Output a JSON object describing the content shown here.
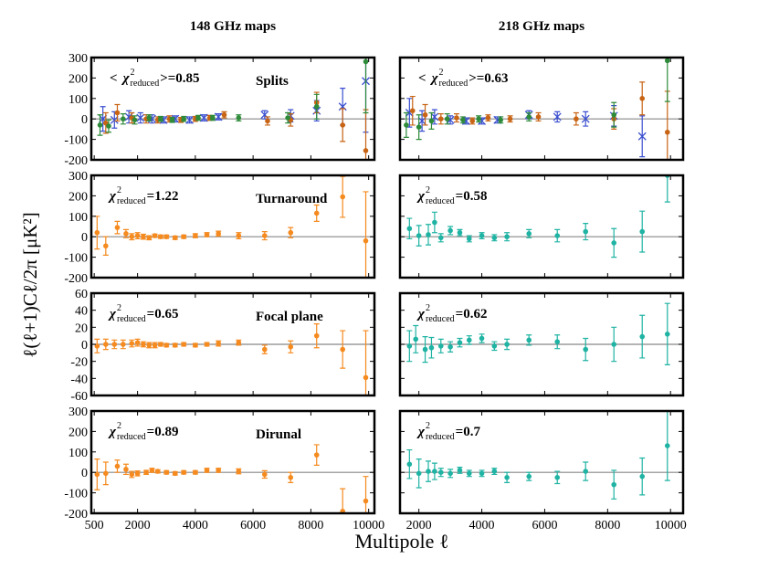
{
  "figure": {
    "xlabel": "Multipole ℓ",
    "ylabel": "ℓ(ℓ+1)Cℓ/2π [μK²]"
  },
  "chart_data": [
    {
      "type": "scatter",
      "title": "148 GHz maps",
      "label": "Splits",
      "stat_prefix": "<",
      "stat_symbol": "χ",
      "stat_sup": "2",
      "stat_sub": "reduced",
      "stat_text": ">=0.85",
      "xlim": [
        400,
        10200
      ],
      "ylim": [
        -200,
        300
      ],
      "xticks": [
        500,
        2000,
        4000,
        6000,
        8000,
        10000
      ],
      "yticks": [
        -200,
        -100,
        0,
        100,
        200,
        300
      ],
      "show_xtick_labels": false,
      "show_ytick_labels": true,
      "hline": 0,
      "hline_color": "#888888",
      "series": [
        {
          "color": "#3a4fd0",
          "marker": "x",
          "x": [
            800,
            1200,
            1700,
            2100,
            2500,
            2900,
            3300,
            3800,
            4300,
            4800,
            6400,
            7300,
            8200,
            9100,
            9900
          ],
          "values": [
            0,
            -5,
            10,
            5,
            0,
            -5,
            0,
            -5,
            5,
            10,
            20,
            15,
            40,
            60,
            185
          ],
          "errors": [
            60,
            40,
            30,
            25,
            20,
            15,
            15,
            15,
            15,
            15,
            20,
            30,
            50,
            90,
            250
          ]
        },
        {
          "color": "#c86414",
          "marker": "o",
          "x": [
            900,
            1300,
            1800,
            2300,
            2700,
            3100,
            3500,
            4000,
            4500,
            5000,
            6500,
            7300,
            8200,
            9100,
            9900
          ],
          "values": [
            -20,
            30,
            5,
            0,
            -5,
            0,
            -5,
            0,
            5,
            20,
            -10,
            -5,
            80,
            -30,
            -155
          ],
          "errors": [
            50,
            40,
            25,
            20,
            15,
            15,
            12,
            12,
            12,
            15,
            20,
            30,
            50,
            80,
            200
          ]
        },
        {
          "color": "#2e8b3a",
          "marker": "o",
          "x": [
            700,
            1000,
            1500,
            1900,
            2400,
            2800,
            3200,
            3600,
            4100,
            4600,
            5500,
            7200,
            8200,
            9900
          ],
          "values": [
            -30,
            -35,
            0,
            -5,
            5,
            0,
            -5,
            0,
            5,
            5,
            5,
            5,
            60,
            280
          ],
          "errors": [
            50,
            30,
            25,
            20,
            15,
            12,
            12,
            12,
            12,
            12,
            15,
            25,
            60,
            250
          ]
        }
      ]
    },
    {
      "type": "scatter",
      "title": "218 GHz maps",
      "stat_prefix": "<",
      "stat_symbol": "χ",
      "stat_sup": "2",
      "stat_sub": "reduced",
      "stat_text": ">=0.63",
      "xlim": [
        1400,
        10400
      ],
      "ylim": [
        -200,
        300
      ],
      "xticks": [
        2000,
        4000,
        6000,
        8000,
        10000
      ],
      "yticks": [
        -200,
        -100,
        0,
        100,
        200,
        300
      ],
      "show_xtick_labels": false,
      "show_ytick_labels": false,
      "hline": 0,
      "hline_color": "#888888",
      "series": [
        {
          "color": "#3a4fd0",
          "marker": "x",
          "x": [
            1700,
            2100,
            2500,
            3000,
            3500,
            4000,
            4500,
            5500,
            6400,
            7300,
            8200,
            9100
          ],
          "values": [
            30,
            -10,
            10,
            -5,
            -10,
            -10,
            -5,
            20,
            10,
            0,
            15,
            -85
          ],
          "errors": [
            70,
            50,
            35,
            20,
            15,
            15,
            15,
            20,
            25,
            35,
            50,
            100
          ]
        },
        {
          "color": "#c86414",
          "marker": "o",
          "x": [
            1800,
            2200,
            2700,
            3200,
            3700,
            4200,
            4900,
            5800,
            7000,
            8200,
            9100,
            9900
          ],
          "values": [
            40,
            20,
            0,
            5,
            -10,
            5,
            0,
            10,
            0,
            0,
            100,
            -65
          ],
          "errors": [
            70,
            50,
            25,
            20,
            15,
            15,
            15,
            20,
            30,
            50,
            80,
            200
          ]
        },
        {
          "color": "#2e8b3a",
          "marker": "o",
          "x": [
            1600,
            2000,
            2400,
            2900,
            3400,
            3900,
            4600,
            5500,
            8200,
            9900
          ],
          "values": [
            -30,
            -40,
            -10,
            0,
            -5,
            0,
            -5,
            10,
            20,
            285
          ],
          "errors": [
            60,
            60,
            40,
            25,
            15,
            15,
            15,
            20,
            60,
            200
          ]
        }
      ]
    },
    {
      "type": "scatter",
      "label": "Turnaround",
      "stat_symbol": "χ",
      "stat_sup": "2",
      "stat_sub": "reduced",
      "stat_text": "=1.22",
      "xlim": [
        400,
        10200
      ],
      "ylim": [
        -200,
        300
      ],
      "xticks": [
        500,
        2000,
        4000,
        6000,
        8000,
        10000
      ],
      "yticks": [
        -200,
        -100,
        0,
        100,
        200,
        300
      ],
      "show_xtick_labels": false,
      "show_ytick_labels": true,
      "hline": 0,
      "hline_color": "#888888",
      "series": [
        {
          "color": "#f58a1f",
          "marker": "o",
          "x": [
            600,
            900,
            1300,
            1600,
            1800,
            2000,
            2200,
            2400,
            2600,
            2800,
            3000,
            3300,
            3600,
            4000,
            4400,
            4800,
            5500,
            6400,
            7300,
            8200,
            9100,
            9900
          ],
          "values": [
            20,
            -45,
            45,
            15,
            0,
            5,
            0,
            -5,
            5,
            0,
            0,
            -5,
            0,
            5,
            10,
            15,
            5,
            5,
            20,
            115,
            195,
            -20
          ],
          "errors": [
            80,
            45,
            30,
            20,
            15,
            15,
            12,
            10,
            8,
            8,
            8,
            8,
            8,
            10,
            10,
            12,
            15,
            20,
            25,
            40,
            100,
            240
          ]
        }
      ]
    },
    {
      "type": "scatter",
      "stat_symbol": "χ",
      "stat_sup": "2",
      "stat_sub": "reduced",
      "stat_text": "=0.58",
      "xlim": [
        1400,
        10400
      ],
      "ylim": [
        -200,
        300
      ],
      "xticks": [
        2000,
        4000,
        6000,
        8000,
        10000
      ],
      "yticks": [
        -200,
        -100,
        0,
        100,
        200,
        300
      ],
      "show_xtick_labels": false,
      "show_ytick_labels": false,
      "hline": 0,
      "hline_color": "#888888",
      "series": [
        {
          "color": "#1fb3a3",
          "marker": "o",
          "x": [
            1700,
            2000,
            2300,
            2500,
            2700,
            3000,
            3300,
            3600,
            4000,
            4400,
            4800,
            5500,
            6400,
            7300,
            8200,
            9100,
            9900
          ],
          "values": [
            40,
            5,
            10,
            70,
            -5,
            30,
            20,
            -10,
            5,
            -5,
            0,
            15,
            5,
            25,
            -30,
            25,
            300
          ],
          "errors": [
            50,
            50,
            50,
            50,
            20,
            20,
            15,
            15,
            15,
            15,
            20,
            20,
            30,
            40,
            70,
            100,
            130
          ]
        }
      ]
    },
    {
      "type": "scatter",
      "label": "Focal plane",
      "stat_symbol": "χ",
      "stat_sup": "2",
      "stat_sub": "reduced",
      "stat_text": "=0.65",
      "xlim": [
        400,
        10200
      ],
      "ylim": [
        -60,
        60
      ],
      "xticks": [
        500,
        2000,
        4000,
        6000,
        8000,
        10000
      ],
      "yticks": [
        -60,
        -40,
        -20,
        0,
        20,
        40,
        60
      ],
      "show_xtick_labels": false,
      "show_ytick_labels": true,
      "hline": 0,
      "hline_color": "#888888",
      "series": [
        {
          "color": "#f58a1f",
          "marker": "o",
          "x": [
            600,
            900,
            1200,
            1500,
            1800,
            2000,
            2200,
            2400,
            2600,
            2800,
            3000,
            3300,
            3600,
            4000,
            4400,
            4800,
            5500,
            6400,
            7300,
            8200,
            9100,
            9900
          ],
          "values": [
            -2,
            0,
            0,
            0,
            1,
            2,
            0,
            -1,
            -1,
            0,
            -1,
            -1,
            0,
            -1,
            0,
            1,
            2,
            -6,
            -3,
            10,
            -6,
            -39
          ],
          "errors": [
            8,
            6,
            5,
            5,
            4,
            4,
            3,
            3,
            3,
            2,
            2,
            2,
            2,
            2,
            2,
            3,
            3,
            5,
            7,
            14,
            22,
            55
          ]
        }
      ]
    },
    {
      "type": "scatter",
      "stat_symbol": "χ",
      "stat_sup": "2",
      "stat_sub": "reduced",
      "stat_text": "=0.62",
      "xlim": [
        1400,
        10400
      ],
      "ylim": [
        -60,
        60
      ],
      "xticks": [
        2000,
        4000,
        6000,
        8000,
        10000
      ],
      "yticks": [
        -60,
        -40,
        -20,
        0,
        20,
        40,
        60
      ],
      "show_xtick_labels": false,
      "show_ytick_labels": false,
      "hline": 0,
      "hline_color": "#888888",
      "series": [
        {
          "color": "#1fb3a3",
          "marker": "o",
          "x": [
            1700,
            1900,
            2200,
            2400,
            2700,
            3000,
            3300,
            3600,
            4000,
            4400,
            4800,
            5500,
            6400,
            7300,
            8200,
            9100,
            9900
          ],
          "values": [
            -2,
            6,
            -6,
            -4,
            -2,
            -3,
            2,
            5,
            7,
            -2,
            0,
            5,
            3,
            -6,
            0,
            9,
            12
          ],
          "errors": [
            18,
            16,
            15,
            12,
            8,
            6,
            5,
            5,
            5,
            5,
            6,
            6,
            8,
            13,
            20,
            25,
            36
          ]
        }
      ]
    },
    {
      "type": "scatter",
      "label": "Dirunal",
      "stat_symbol": "χ",
      "stat_sup": "2",
      "stat_sub": "reduced",
      "stat_text": "=0.89",
      "xlim": [
        400,
        10200
      ],
      "ylim": [
        -200,
        300
      ],
      "xticks": [
        500,
        2000,
        4000,
        6000,
        8000,
        10000
      ],
      "yticks": [
        -200,
        -100,
        0,
        100,
        200,
        300
      ],
      "show_xtick_labels": true,
      "show_ytick_labels": true,
      "hline": 0,
      "hline_color": "#888888",
      "series": [
        {
          "color": "#f58a1f",
          "marker": "o",
          "x": [
            600,
            900,
            1300,
            1600,
            1800,
            2000,
            2300,
            2500,
            2700,
            3000,
            3300,
            3600,
            4000,
            4400,
            4800,
            5500,
            6400,
            7300,
            8200,
            9100,
            9900
          ],
          "values": [
            -10,
            -5,
            30,
            15,
            -10,
            -5,
            0,
            10,
            5,
            0,
            -5,
            0,
            0,
            10,
            10,
            5,
            -10,
            -25,
            85,
            -190,
            -140
          ],
          "errors": [
            75,
            55,
            30,
            25,
            15,
            12,
            10,
            10,
            8,
            8,
            8,
            8,
            8,
            10,
            10,
            12,
            18,
            25,
            50,
            110,
            120
          ]
        }
      ]
    },
    {
      "type": "scatter",
      "stat_symbol": "χ",
      "stat_sup": "2",
      "stat_sub": "reduced",
      "stat_text": "=0.7",
      "xlim": [
        1400,
        10400
      ],
      "ylim": [
        -200,
        300
      ],
      "xticks": [
        2000,
        4000,
        6000,
        8000,
        10000
      ],
      "yticks": [
        -200,
        -100,
        0,
        100,
        200,
        300
      ],
      "show_xtick_labels": true,
      "show_ytick_labels": false,
      "hline": 0,
      "hline_color": "#888888",
      "series": [
        {
          "color": "#1fb3a3",
          "marker": "o",
          "x": [
            1700,
            2000,
            2300,
            2500,
            2700,
            3000,
            3300,
            3600,
            4000,
            4400,
            4800,
            5500,
            6400,
            7300,
            8200,
            9100,
            9900
          ],
          "values": [
            40,
            -5,
            5,
            5,
            0,
            -5,
            10,
            -5,
            -5,
            5,
            -25,
            -20,
            -25,
            5,
            -60,
            -20,
            130
          ],
          "errors": [
            70,
            70,
            50,
            40,
            20,
            20,
            15,
            15,
            15,
            15,
            25,
            20,
            30,
            45,
            70,
            90,
            170
          ]
        }
      ]
    }
  ]
}
